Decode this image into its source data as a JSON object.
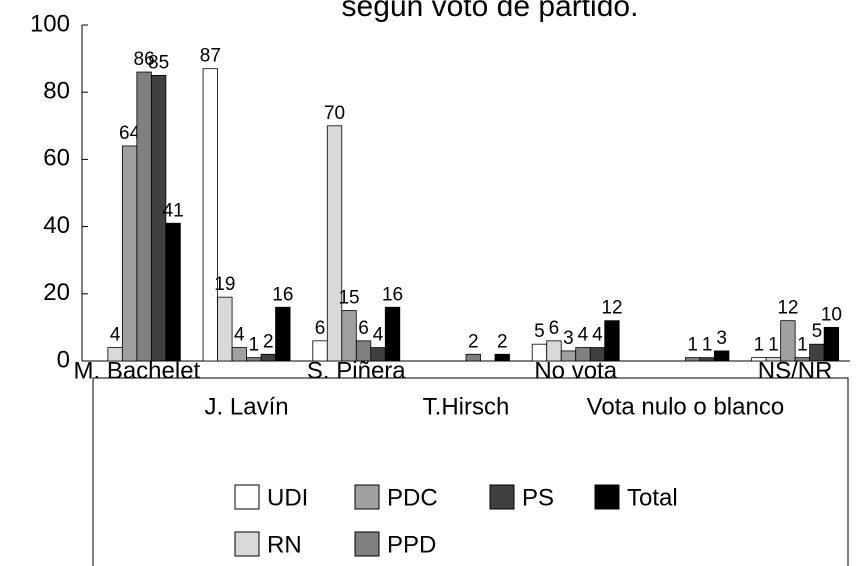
{
  "chart_data": {
    "type": "bar",
    "title": "según voto de partido.",
    "categories": [
      "M. Bachelet",
      "J. Lavín",
      "S. Piñera",
      "T.Hirsch",
      "No vota",
      "Vota nulo o blanco",
      "NS/NR"
    ],
    "series": [
      {
        "name": "UDI",
        "color": "#ffffff",
        "values": [
          null,
          87,
          6,
          null,
          5,
          null,
          1
        ]
      },
      {
        "name": "RN",
        "color": "#d9d9d9",
        "values": [
          4,
          19,
          70,
          null,
          6,
          null,
          1
        ]
      },
      {
        "name": "PDC",
        "color": "#a0a0a0",
        "values": [
          64,
          4,
          15,
          null,
          3,
          null,
          12
        ]
      },
      {
        "name": "PPD",
        "color": "#808080",
        "values": [
          86,
          1,
          6,
          2,
          4,
          1,
          1
        ]
      },
      {
        "name": "PS",
        "color": "#404040",
        "values": [
          85,
          2,
          4,
          null,
          4,
          1,
          5
        ]
      },
      {
        "name": "Total",
        "color": "#000000",
        "values": [
          41,
          16,
          16,
          2,
          12,
          3,
          10
        ]
      }
    ],
    "ylim": [
      0,
      100
    ],
    "yticks": [
      0,
      20,
      40,
      60,
      80,
      100
    ]
  }
}
